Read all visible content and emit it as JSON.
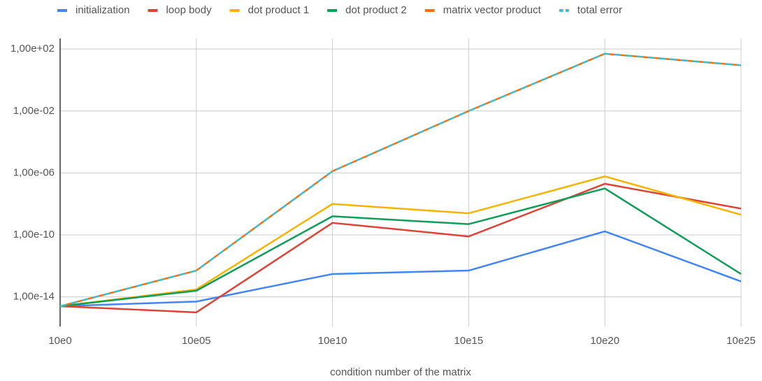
{
  "chart_data": {
    "type": "line",
    "x_label": "condition number of the matrix",
    "categories": [
      "10e0",
      "10e05",
      "10e10",
      "10e15",
      "10e20",
      "10e25"
    ],
    "log_y": true,
    "grid": true,
    "legend": "top",
    "ylim": [
      1e-16,
      1000
    ],
    "yticks": [
      {
        "value": 1e-14,
        "label": "1,00e-14"
      },
      {
        "value": 1e-10,
        "label": "1,00e-10"
      },
      {
        "value": 1e-06,
        "label": "1,00e-06"
      },
      {
        "value": 0.01,
        "label": "1,00e-02"
      },
      {
        "value": 100,
        "label": "1,00e+02"
      }
    ],
    "series": [
      {
        "name": "initialization",
        "color": "#4285f4",
        "dashed": false,
        "values": [
          2.5e-15,
          5e-15,
          3e-13,
          5e-13,
          1.7e-10,
          1e-13
        ]
      },
      {
        "name": "loop body",
        "color": "#db4437",
        "dashed": false,
        "values": [
          2.5e-15,
          1e-15,
          6e-10,
          8e-11,
          2e-07,
          5e-09
        ]
      },
      {
        "name": "dot product 1",
        "color": "#f4b400",
        "dashed": false,
        "values": [
          2.5e-15,
          3e-14,
          1e-08,
          2.5e-09,
          6e-07,
          2e-09
        ]
      },
      {
        "name": "dot product 2",
        "color": "#0f9d58",
        "dashed": false,
        "values": [
          2.5e-15,
          2.5e-14,
          1.6e-09,
          5e-10,
          1e-07,
          3e-13
        ]
      },
      {
        "name": "matrix vector product",
        "color": "#ff6d00",
        "dashed": false,
        "values": [
          2.5e-15,
          5e-13,
          1.3e-06,
          0.01,
          50,
          9
        ]
      },
      {
        "name": "total error",
        "color": "#46bdc6",
        "dashed": true,
        "values": [
          2.5e-15,
          5e-13,
          1.3e-06,
          0.01,
          50,
          9
        ]
      }
    ]
  }
}
